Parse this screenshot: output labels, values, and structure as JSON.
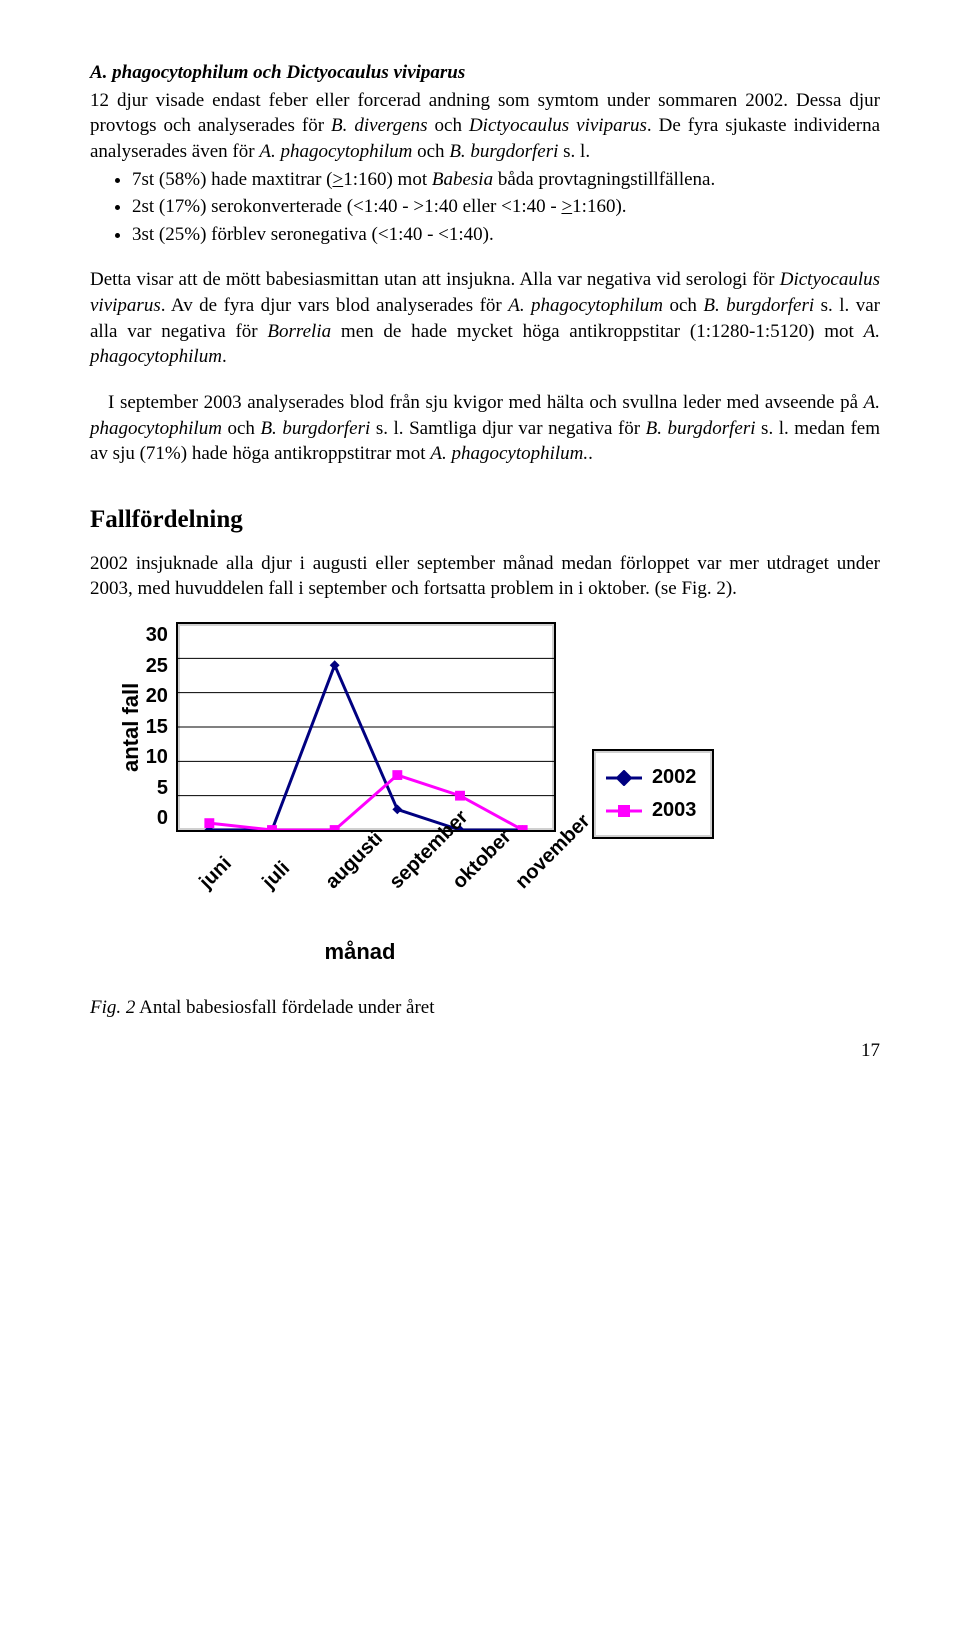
{
  "heading1": "A. phagocytophilum och Dictyocaulus viviparus",
  "para1_a": "12 djur visade endast feber eller forcerad andning som symtom under sommaren 2002. Dessa djur provtogs och analyserades för ",
  "para1_b": "B. divergens",
  "para1_c": " och ",
  "para1_d": "Dictyocaulus viviparus",
  "para1_e": ". De fyra sjukaste individerna analyserades även för ",
  "para1_f": "A. phagocytophilum",
  "para1_g": " och ",
  "para1_h": "B. burgdorferi",
  "para1_i": " s. l.",
  "bullets": [
    {
      "a": "7st (58%) hade maxtitrar (",
      "b": ">",
      "c": "1:160) mot ",
      "d": "Babesia",
      "e": " båda provtagningstillfällena."
    },
    {
      "a": "2st (17%) serokonverterade (<1:40 - >1:40 eller <1:40 - ",
      "b": ">",
      "c": "1:160).",
      "d": "",
      "e": ""
    },
    {
      "a": "3st (25%) förblev seronegativa (<1:40 - <1:40).",
      "b": "",
      "c": "",
      "d": "",
      "e": ""
    }
  ],
  "para2_a": "Detta visar att de mött babesiasmittan utan att insjukna. Alla var negativa vid serologi för ",
  "para2_b": "Dictyocaulus viviparus",
  "para2_c": ". Av de fyra djur vars blod analyserades för ",
  "para2_d": "A. phagocytophilum",
  "para2_e": " och ",
  "para2_f": "B. burgdorferi",
  "para2_g": " s. l. var alla var negativa för ",
  "para2_h": "Borrelia",
  "para2_i": " men de hade mycket höga antikroppstitar (1:1280-1:5120) mot ",
  "para2_j": "A. phagocytophilum",
  "para2_k": ".",
  "para3_a": "I september 2003 analyserades blod från sju kvigor med hälta och svullna leder med avseende på ",
  "para3_b": "A. phagocytophilum",
  "para3_c": " och ",
  "para3_d": "B. burgdorferi",
  "para3_e": " s. l.  Samtliga djur var negativa för ",
  "para3_f": "B. burgdorferi",
  "para3_g": " s. l. medan fem av sju (71%) hade höga antikroppstitrar mot ",
  "para3_h": "A. phagocytophilum.",
  "para3_i": ".",
  "heading2": "Fallfördelning",
  "para4": "2002 insjuknade alla djur i augusti eller september månad medan förloppet var mer utdraget under 2003, med huvuddelen fall i september och fortsatta problem in i oktober. (se Fig. 2).",
  "chart": {
    "type": "line",
    "y_label": "antal fall",
    "x_label": "månad",
    "y_ticks": [
      "30",
      "25",
      "20",
      "15",
      "10",
      "5",
      "0"
    ],
    "ylim": [
      0,
      30
    ],
    "categories": [
      "juni",
      "juli",
      "augusti",
      "september",
      "oktober",
      "november"
    ],
    "series": [
      {
        "name": "2002",
        "color": "#000080",
        "marker": "diamond",
        "values": [
          0,
          0,
          24,
          3,
          0,
          0
        ]
      },
      {
        "name": "2003",
        "color": "#ff00ff",
        "marker": "square",
        "values": [
          1,
          0,
          0,
          8,
          5,
          0
        ]
      }
    ],
    "background_color": "#ffffff",
    "border_color": "#000000",
    "grid_color": "#000000",
    "line_width": 3,
    "marker_size": 10,
    "title_fontsize": 22,
    "tick_fontsize": 20
  },
  "fig_label": "Fig. 2",
  "fig_caption": " Antal babesiosfall fördelade under året",
  "page_number": "17"
}
